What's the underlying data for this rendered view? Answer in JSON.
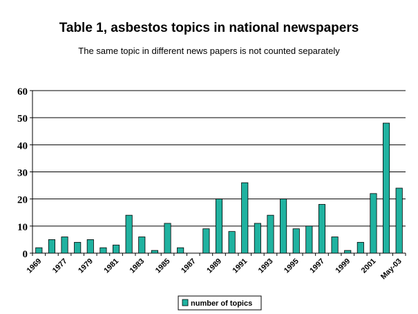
{
  "chart_data": {
    "type": "bar",
    "title": "Table 1, asbestos topics in national newspapers",
    "subtitle": "The same topic in different news papers is not counted separately",
    "xlabel": "",
    "ylabel": "",
    "ylim": [
      0,
      60
    ],
    "yticks": [
      0,
      10,
      20,
      30,
      40,
      50,
      60
    ],
    "grid": true,
    "legend_position": "bottom-center",
    "categories": [
      "1969",
      "",
      "1977",
      "",
      "1979",
      "",
      "1981",
      "",
      "1983",
      "",
      "1985",
      "",
      "1987",
      "",
      "1989",
      "",
      "1991",
      "",
      "1993",
      "",
      "1995",
      "",
      "1997",
      "",
      "1999",
      "",
      "2001",
      "",
      "May-03"
    ],
    "series": [
      {
        "name": "number of topics",
        "color": "#20b2a0",
        "values": [
          2,
          5,
          6,
          4,
          5,
          2,
          3,
          14,
          6,
          1,
          11,
          2,
          0,
          9,
          20,
          8,
          26,
          11,
          14,
          20,
          9,
          10,
          18,
          6,
          1,
          4,
          22,
          48,
          24
        ]
      }
    ]
  }
}
